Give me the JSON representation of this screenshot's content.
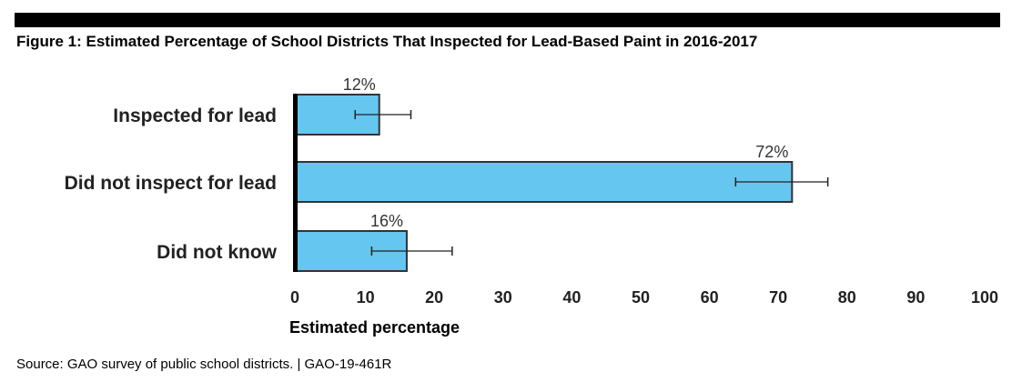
{
  "title": "Figure 1: Estimated Percentage of School Districts That Inspected for Lead-Based Paint in 2016-2017",
  "source": "Source: GAO survey of public school districts.  |  GAO-19-461R",
  "colors": {
    "bar": "#65c6f0",
    "bar_stroke": "#333333",
    "axis": "#000000"
  },
  "chart_data": {
    "type": "bar",
    "orientation": "horizontal",
    "title": "Figure 1: Estimated Percentage of School Districts That Inspected for Lead-Based Paint in 2016-2017",
    "categories": [
      "Inspected for lead",
      "Did not inspect for lead",
      "Did not know"
    ],
    "values": [
      12,
      72,
      16
    ],
    "data_labels": [
      "12%",
      "72%",
      "16%"
    ],
    "error_bars": [
      [
        8.5,
        16.6
      ],
      [
        63.8,
        77.2
      ],
      [
        10.9,
        22.6
      ]
    ],
    "xlabel": "Estimated percentage",
    "ylabel": "",
    "xlim": [
      0,
      100
    ],
    "xticks": [
      0,
      10,
      20,
      30,
      40,
      50,
      60,
      70,
      80,
      90,
      100
    ],
    "grid": false
  }
}
